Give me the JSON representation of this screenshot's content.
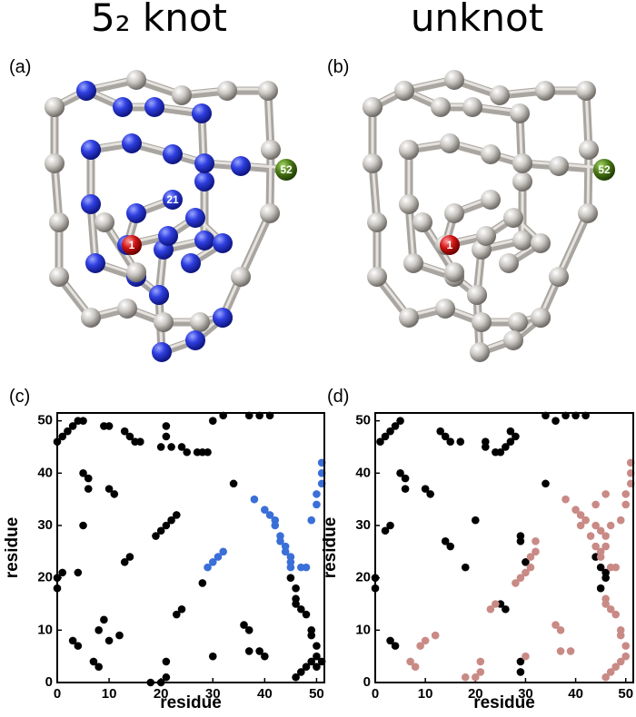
{
  "figure": {
    "columns": [
      {
        "title": "5₂ knot",
        "panel_label": "(a)",
        "bead_labels": [
          "1",
          "21",
          "52"
        ]
      },
      {
        "title": "unknot",
        "panel_label": "(b)",
        "bead_labels": [
          "1",
          "52"
        ]
      }
    ]
  },
  "chart_data": [
    {
      "type": "scatter",
      "panel_label": "(c)",
      "x_label": "residue",
      "y_label": "residue",
      "xlim": [
        0,
        51.5
      ],
      "ylim": [
        0,
        51.5
      ],
      "xticks": [
        0,
        10,
        20,
        30,
        40,
        50
      ],
      "yticks": [
        0,
        10,
        20,
        30,
        40,
        50
      ],
      "series": [
        {
          "color": "#000000",
          "x": [
            0,
            0,
            1,
            4,
            0,
            1,
            2,
            3,
            4,
            5,
            3,
            4,
            5,
            5,
            6,
            6,
            9,
            10,
            10,
            11,
            9,
            8,
            13,
            14,
            13,
            14,
            15,
            16,
            19,
            20,
            21,
            22,
            23,
            20,
            21,
            21,
            22,
            24,
            25,
            27,
            28,
            29,
            30,
            32,
            34,
            37,
            39,
            41,
            18,
            20,
            21,
            21,
            46,
            47,
            48,
            49,
            50,
            8,
            7,
            30,
            40,
            39,
            37,
            49,
            49,
            37,
            36,
            12,
            10,
            23,
            24,
            48,
            47,
            46,
            46,
            28,
            46,
            45,
            50,
            50,
            51
          ],
          "y": [
            18,
            20,
            21,
            21,
            46,
            47,
            48,
            49,
            50,
            50,
            8,
            7,
            30,
            40,
            39,
            37,
            49,
            49,
            37,
            36,
            12,
            10,
            23,
            24,
            48,
            47,
            46,
            46,
            28,
            29,
            30,
            31,
            32,
            45,
            47,
            49,
            45,
            45,
            44,
            44,
            44,
            44,
            50,
            51,
            38,
            51,
            51,
            51,
            0,
            0,
            1,
            4,
            1,
            2,
            3,
            4,
            5,
            3,
            4,
            5,
            5,
            6,
            6,
            9,
            10,
            10,
            11,
            9,
            8,
            13,
            14,
            13,
            14,
            15,
            16,
            19,
            18,
            20,
            7,
            3,
            4
          ]
        },
        {
          "color": "#3a6fd8",
          "x": [
            29,
            30,
            31,
            32,
            38,
            40,
            41,
            42,
            42,
            43,
            43,
            44,
            44,
            45,
            45,
            45,
            47,
            48,
            49,
            50,
            50,
            51,
            51,
            51
          ],
          "y": [
            22,
            23,
            24,
            25,
            35,
            33,
            32,
            31,
            30,
            28,
            27,
            26,
            25,
            24,
            23,
            22,
            22,
            22,
            31,
            34,
            36,
            38,
            40,
            42
          ]
        }
      ]
    },
    {
      "type": "scatter",
      "panel_label": "(d)",
      "x_label": "residue",
      "y_label": "residue",
      "xlim": [
        0,
        51.5
      ],
      "ylim": [
        0,
        51.5
      ],
      "xticks": [
        0,
        10,
        20,
        30,
        40,
        50
      ],
      "yticks": [
        0,
        10,
        20,
        30,
        40,
        50
      ],
      "series": [
        {
          "color": "#000000",
          "x": [
            0,
            0,
            1,
            2,
            3,
            4,
            5,
            2,
            3,
            3,
            4,
            5,
            6,
            6,
            10,
            11,
            14,
            15,
            13,
            14,
            15,
            17,
            18,
            20,
            22,
            22,
            24,
            25,
            26,
            27,
            27,
            28,
            29,
            29,
            30,
            29,
            29,
            25,
            26,
            34,
            34,
            36,
            38,
            40,
            42,
            44,
            45,
            45,
            46,
            46
          ],
          "y": [
            18,
            20,
            46,
            47,
            48,
            49,
            50,
            29,
            30,
            8,
            7,
            40,
            39,
            37,
            37,
            36,
            27,
            26,
            48,
            47,
            46,
            46,
            22,
            31,
            46,
            45,
            44,
            44,
            45,
            46,
            48,
            47,
            28,
            27,
            23,
            4,
            2,
            15,
            14,
            38,
            51,
            50,
            51,
            51,
            51,
            24,
            22,
            18,
            20,
            21
          ]
        },
        {
          "color": "#c98a86",
          "x": [
            8,
            7,
            9,
            12,
            10,
            18,
            20,
            21,
            21,
            23,
            24,
            28,
            29,
            30,
            31,
            31,
            32,
            32,
            30,
            36,
            37,
            37,
            39,
            38,
            40,
            41,
            41,
            42,
            43,
            44,
            44,
            45,
            44,
            46,
            47,
            48,
            46,
            46,
            47,
            48,
            49,
            49,
            50,
            50,
            49,
            48,
            47,
            46,
            49,
            50,
            50,
            51,
            51,
            51,
            45,
            45,
            46,
            46,
            47
          ],
          "y": [
            3,
            4,
            7,
            9,
            8,
            1,
            1,
            2,
            4,
            14,
            15,
            19,
            20,
            21,
            22,
            24,
            25,
            27,
            5,
            11,
            10,
            6,
            6,
            35,
            33,
            32,
            30,
            31,
            28,
            26,
            30,
            29,
            34,
            36,
            22,
            22,
            15,
            16,
            14,
            13,
            10,
            9,
            7,
            5,
            4,
            3,
            2,
            1,
            31,
            34,
            36,
            38,
            40,
            42,
            24,
            25,
            26,
            28,
            30
          ]
        }
      ]
    }
  ]
}
